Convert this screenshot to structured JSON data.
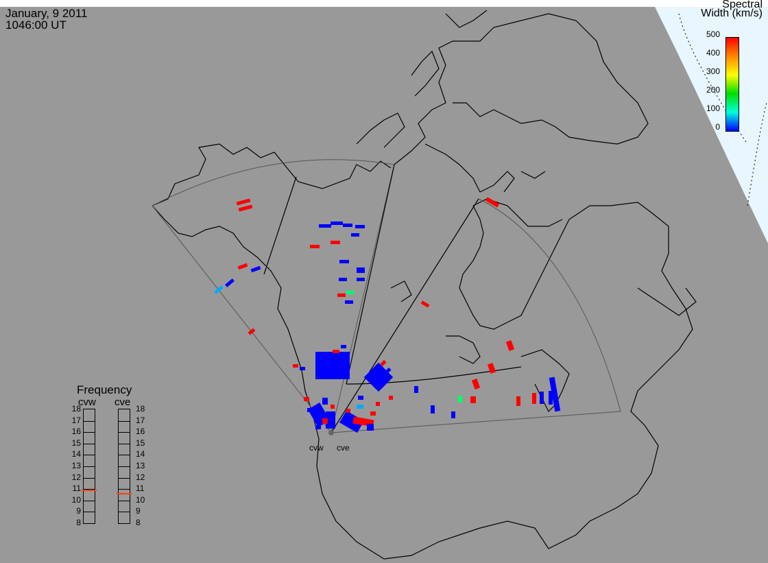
{
  "header": {
    "date": "January, 9 2011",
    "time": "1046:00 UT"
  },
  "colorbar": {
    "title_line1": "Spectral",
    "title_line2": "Width (km/s)",
    "ticks": [
      "500",
      "400",
      "300",
      "200",
      "100",
      "0"
    ],
    "colors": [
      "#ff0000",
      "#ff8800",
      "#ffff00",
      "#00dd00",
      "#00ffdd",
      "#0000ff"
    ]
  },
  "frequency_panel": {
    "title": "Frequency",
    "radars": [
      {
        "name": "cvw",
        "value_mhz": 10.9
      },
      {
        "name": "cve",
        "value_mhz": 10.6
      }
    ],
    "ticks": [
      "18",
      "17",
      "16",
      "15",
      "14",
      "13",
      "12",
      "11",
      "10",
      "9",
      "8"
    ],
    "range": [
      8,
      18
    ],
    "marker_color": "#ff4400"
  },
  "stations": {
    "cvw": "cvw",
    "cve": "cve"
  },
  "map": {
    "background": "#999999",
    "space_color": "#e8f6ff",
    "coast_color": "#000000",
    "fov_color": "#555555"
  }
}
